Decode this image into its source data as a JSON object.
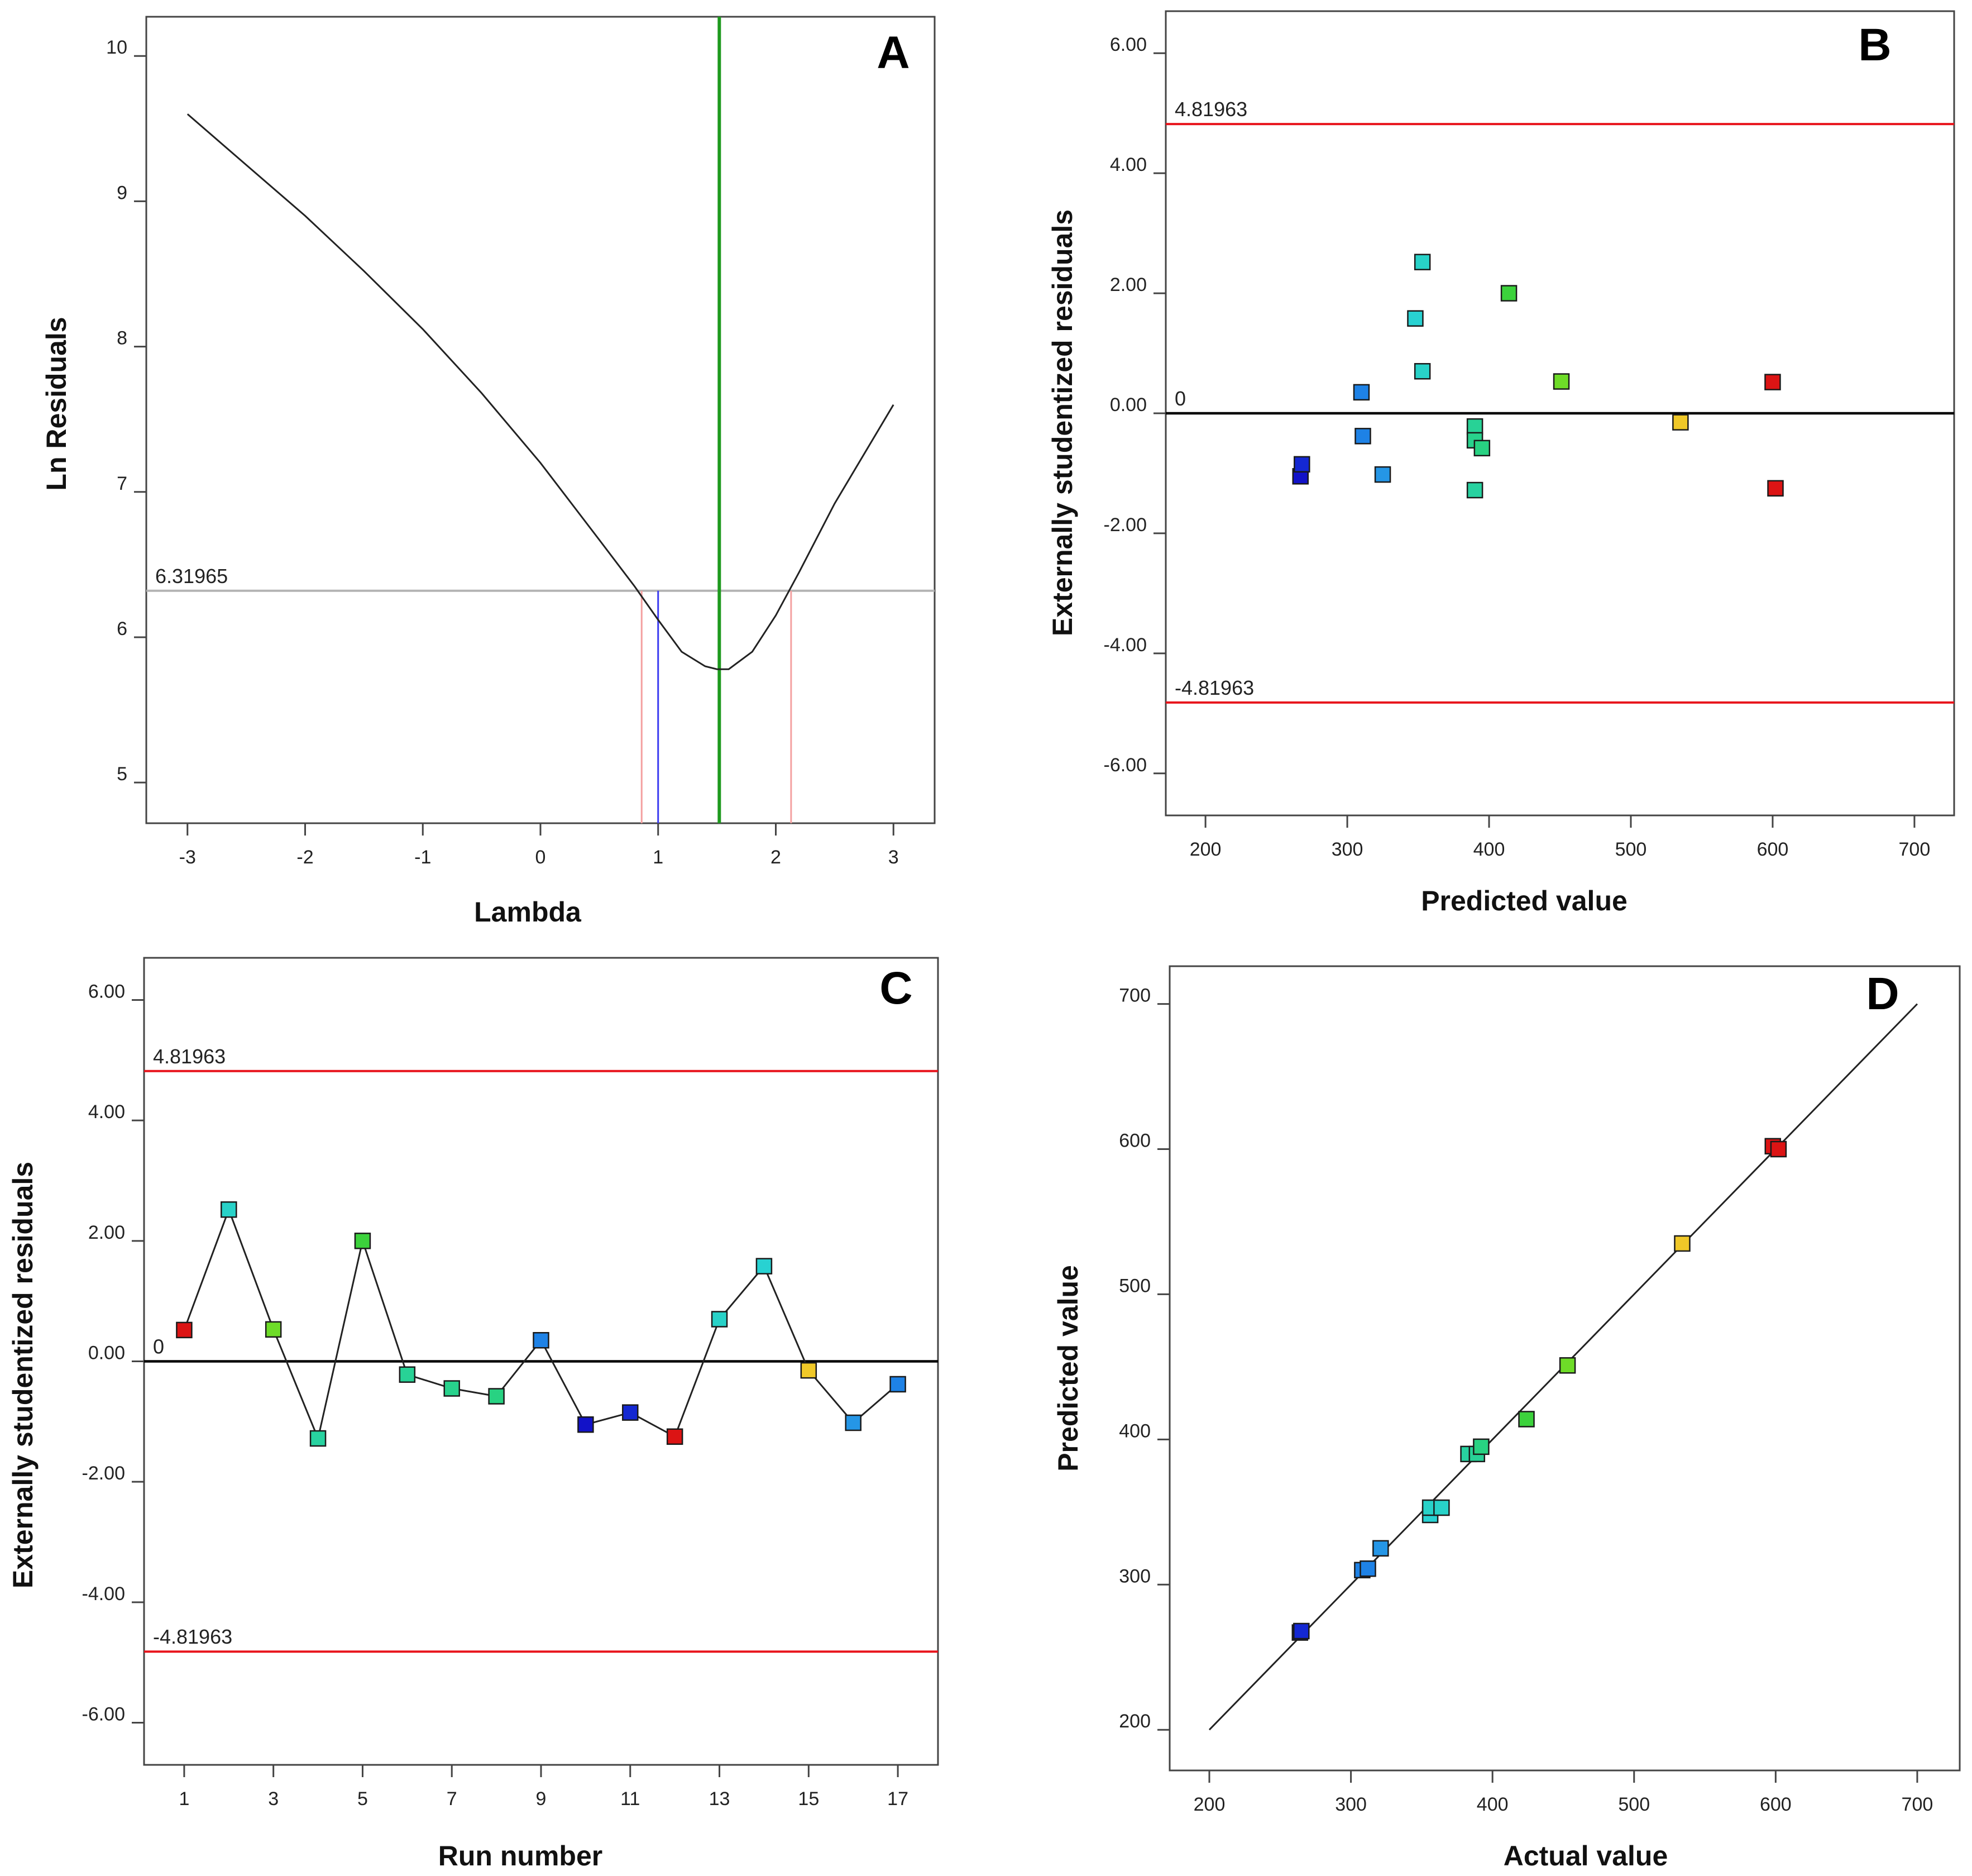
{
  "colors": {
    "limit": "#e8141c",
    "zero": "#000000",
    "green_line": "#1e9a1e",
    "gray_line": "#b4b4b4",
    "pink_line": "#f4a0a0",
    "blue_line": "#3a3af0",
    "curve": "#222222"
  },
  "chart_data": [
    {
      "panel": "A",
      "type": "line",
      "title": "",
      "xlabel": "Lambda",
      "ylabel": "Ln Residuals",
      "xlim": [
        -3.35,
        3.35
      ],
      "ylim": [
        4.72,
        10.27
      ],
      "xticks": [
        -3,
        -2,
        -1,
        0,
        1,
        2,
        3
      ],
      "xtick_labels": [
        "-3",
        "-2",
        "-1",
        "0",
        "1",
        "2",
        "3"
      ],
      "yticks": [
        5,
        6,
        7,
        8,
        9,
        10
      ],
      "ytick_labels": [
        "5",
        "6",
        "7",
        "8",
        "9",
        "10"
      ],
      "series": [
        {
          "name": "Ln Residuals",
          "x": [
            -3,
            -2.5,
            -2,
            -1.5,
            -1,
            -0.5,
            0,
            0.5,
            0.8,
            1,
            1.2,
            1.4,
            1.5,
            1.6,
            1.8,
            2,
            2.2,
            2.5,
            3
          ],
          "y": [
            9.6,
            9.25,
            8.9,
            8.52,
            8.12,
            7.68,
            7.2,
            6.67,
            6.35,
            6.12,
            5.9,
            5.8,
            5.78,
            5.78,
            5.9,
            6.15,
            6.45,
            6.92,
            7.6
          ]
        }
      ],
      "reference_lines": [
        {
          "orientation": "horizontal",
          "value": 6.31965,
          "label": "6.31965",
          "color_key": "gray_line"
        },
        {
          "orientation": "vertical",
          "value": 1.52,
          "label": "",
          "color_key": "green_line"
        },
        {
          "orientation": "vertical",
          "value": 1.0,
          "label": "",
          "color_key": "blue_line"
        },
        {
          "orientation": "vertical",
          "value": 0.86,
          "label": "",
          "color_key": "pink_line"
        },
        {
          "orientation": "vertical",
          "value": 2.13,
          "label": "",
          "color_key": "pink_line"
        }
      ]
    },
    {
      "panel": "B",
      "type": "scatter",
      "title": "",
      "xlabel": "Predicted value",
      "ylabel": "Externally studentized residuals",
      "xlim": [
        172,
        728
      ],
      "ylim": [
        -6.7,
        6.7
      ],
      "xticks": [
        200,
        300,
        400,
        500,
        600,
        700
      ],
      "xtick_labels": [
        "200",
        "300",
        "400",
        "500",
        "600",
        "700"
      ],
      "yticks": [
        6,
        4,
        2,
        0,
        -2,
        -4,
        -6
      ],
      "ytick_labels": [
        "6.00",
        "4.00",
        "2.00",
        "0.00",
        "-2.00",
        "-4.00",
        "-6.00"
      ],
      "zero_label": "0",
      "limit_lines": [
        {
          "value": 4.81963,
          "label": "4.81963"
        },
        {
          "value": -4.81963,
          "label": "-4.81963"
        }
      ],
      "points": [
        {
          "x": 267,
          "y": -1.05,
          "color": "#1212c8"
        },
        {
          "x": 268,
          "y": -0.85,
          "color": "#1428d2"
        },
        {
          "x": 310,
          "y": 0.35,
          "color": "#1e82e6"
        },
        {
          "x": 311,
          "y": -0.38,
          "color": "#1e82e6"
        },
        {
          "x": 325,
          "y": -1.02,
          "color": "#2596e6"
        },
        {
          "x": 348,
          "y": 1.58,
          "color": "#28d2d2"
        },
        {
          "x": 353,
          "y": 2.52,
          "color": "#28d2c8"
        },
        {
          "x": 353,
          "y": 0.7,
          "color": "#28d2c8"
        },
        {
          "x": 390,
          "y": -0.22,
          "color": "#28d296"
        },
        {
          "x": 390,
          "y": -0.45,
          "color": "#28d28c"
        },
        {
          "x": 395,
          "y": -0.58,
          "color": "#28d282"
        },
        {
          "x": 390,
          "y": -1.28,
          "color": "#28d2a0"
        },
        {
          "x": 414,
          "y": 2.0,
          "color": "#3cd23c"
        },
        {
          "x": 451,
          "y": 0.53,
          "color": "#6edc28"
        },
        {
          "x": 535,
          "y": -0.15,
          "color": "#f0c828"
        },
        {
          "x": 600,
          "y": 0.52,
          "color": "#dc1414"
        },
        {
          "x": 602,
          "y": -1.25,
          "color": "#dc1414"
        }
      ]
    },
    {
      "panel": "C",
      "type": "line",
      "title": "",
      "xlabel": "Run number",
      "ylabel": "Externally studentized residuals",
      "xlim": [
        0.1,
        17.9
      ],
      "ylim": [
        -6.7,
        6.7
      ],
      "xticks": [
        1,
        3,
        5,
        7,
        9,
        11,
        13,
        15,
        17
      ],
      "xtick_labels": [
        "1",
        "3",
        "5",
        "7",
        "9",
        "11",
        "13",
        "15",
        "17"
      ],
      "yticks": [
        6,
        4,
        2,
        0,
        -2,
        -4,
        -6
      ],
      "ytick_labels": [
        "6.00",
        "4.00",
        "2.00",
        "0.00",
        "-2.00",
        "-4.00",
        "-6.00"
      ],
      "zero_label": "0",
      "limit_lines": [
        {
          "value": 4.81963,
          "label": "4.81963"
        },
        {
          "value": -4.81963,
          "label": "-4.81963"
        }
      ],
      "points": [
        {
          "x": 1,
          "y": 0.52,
          "color": "#dc1414"
        },
        {
          "x": 2,
          "y": 2.52,
          "color": "#28d2c8"
        },
        {
          "x": 3,
          "y": 0.53,
          "color": "#6edc28"
        },
        {
          "x": 4,
          "y": -1.28,
          "color": "#28d2a0"
        },
        {
          "x": 5,
          "y": 2.0,
          "color": "#3cd23c"
        },
        {
          "x": 6,
          "y": -0.22,
          "color": "#28d296"
        },
        {
          "x": 7,
          "y": -0.45,
          "color": "#28d28c"
        },
        {
          "x": 8,
          "y": -0.58,
          "color": "#28d282"
        },
        {
          "x": 9,
          "y": 0.35,
          "color": "#1e82e6"
        },
        {
          "x": 10,
          "y": -1.05,
          "color": "#1212c8"
        },
        {
          "x": 11,
          "y": -0.85,
          "color": "#1428d2"
        },
        {
          "x": 12,
          "y": -1.25,
          "color": "#dc1414"
        },
        {
          "x": 13,
          "y": 0.7,
          "color": "#28d2c8"
        },
        {
          "x": 14,
          "y": 1.58,
          "color": "#28d2d2"
        },
        {
          "x": 15,
          "y": -0.15,
          "color": "#f0c828"
        },
        {
          "x": 16,
          "y": -1.02,
          "color": "#2596e6"
        },
        {
          "x": 17,
          "y": -0.38,
          "color": "#1e82e6"
        }
      ]
    },
    {
      "panel": "D",
      "type": "scatter",
      "title": "",
      "xlabel": "Actual value",
      "ylabel": "Predicted value",
      "xlim": [
        172,
        730
      ],
      "ylim": [
        172,
        726
      ],
      "xticks": [
        200,
        300,
        400,
        500,
        600,
        700
      ],
      "xtick_labels": [
        "200",
        "300",
        "400",
        "500",
        "600",
        "700"
      ],
      "yticks": [
        200,
        300,
        400,
        500,
        600,
        700
      ],
      "ytick_labels": [
        "200",
        "300",
        "400",
        "500",
        "600",
        "700"
      ],
      "diagonal": [
        200,
        700
      ],
      "points": [
        {
          "x": 264,
          "y": 267,
          "color": "#1212c8"
        },
        {
          "x": 265,
          "y": 268,
          "color": "#1428d2"
        },
        {
          "x": 308,
          "y": 310,
          "color": "#1e82e6"
        },
        {
          "x": 312,
          "y": 311,
          "color": "#1e82e6"
        },
        {
          "x": 321,
          "y": 325,
          "color": "#2596e6"
        },
        {
          "x": 356,
          "y": 348,
          "color": "#28d2d2"
        },
        {
          "x": 356,
          "y": 353,
          "color": "#28d2c8"
        },
        {
          "x": 364,
          "y": 353,
          "color": "#28d2c8"
        },
        {
          "x": 383,
          "y": 390,
          "color": "#28d2a0"
        },
        {
          "x": 389,
          "y": 390,
          "color": "#28d296"
        },
        {
          "x": 392,
          "y": 395,
          "color": "#28d282"
        },
        {
          "x": 424,
          "y": 414,
          "color": "#3cd23c"
        },
        {
          "x": 453,
          "y": 451,
          "color": "#6edc28"
        },
        {
          "x": 534,
          "y": 535,
          "color": "#f0c828"
        },
        {
          "x": 598,
          "y": 602,
          "color": "#dc1414"
        },
        {
          "x": 602,
          "y": 600,
          "color": "#dc1414"
        }
      ]
    }
  ]
}
